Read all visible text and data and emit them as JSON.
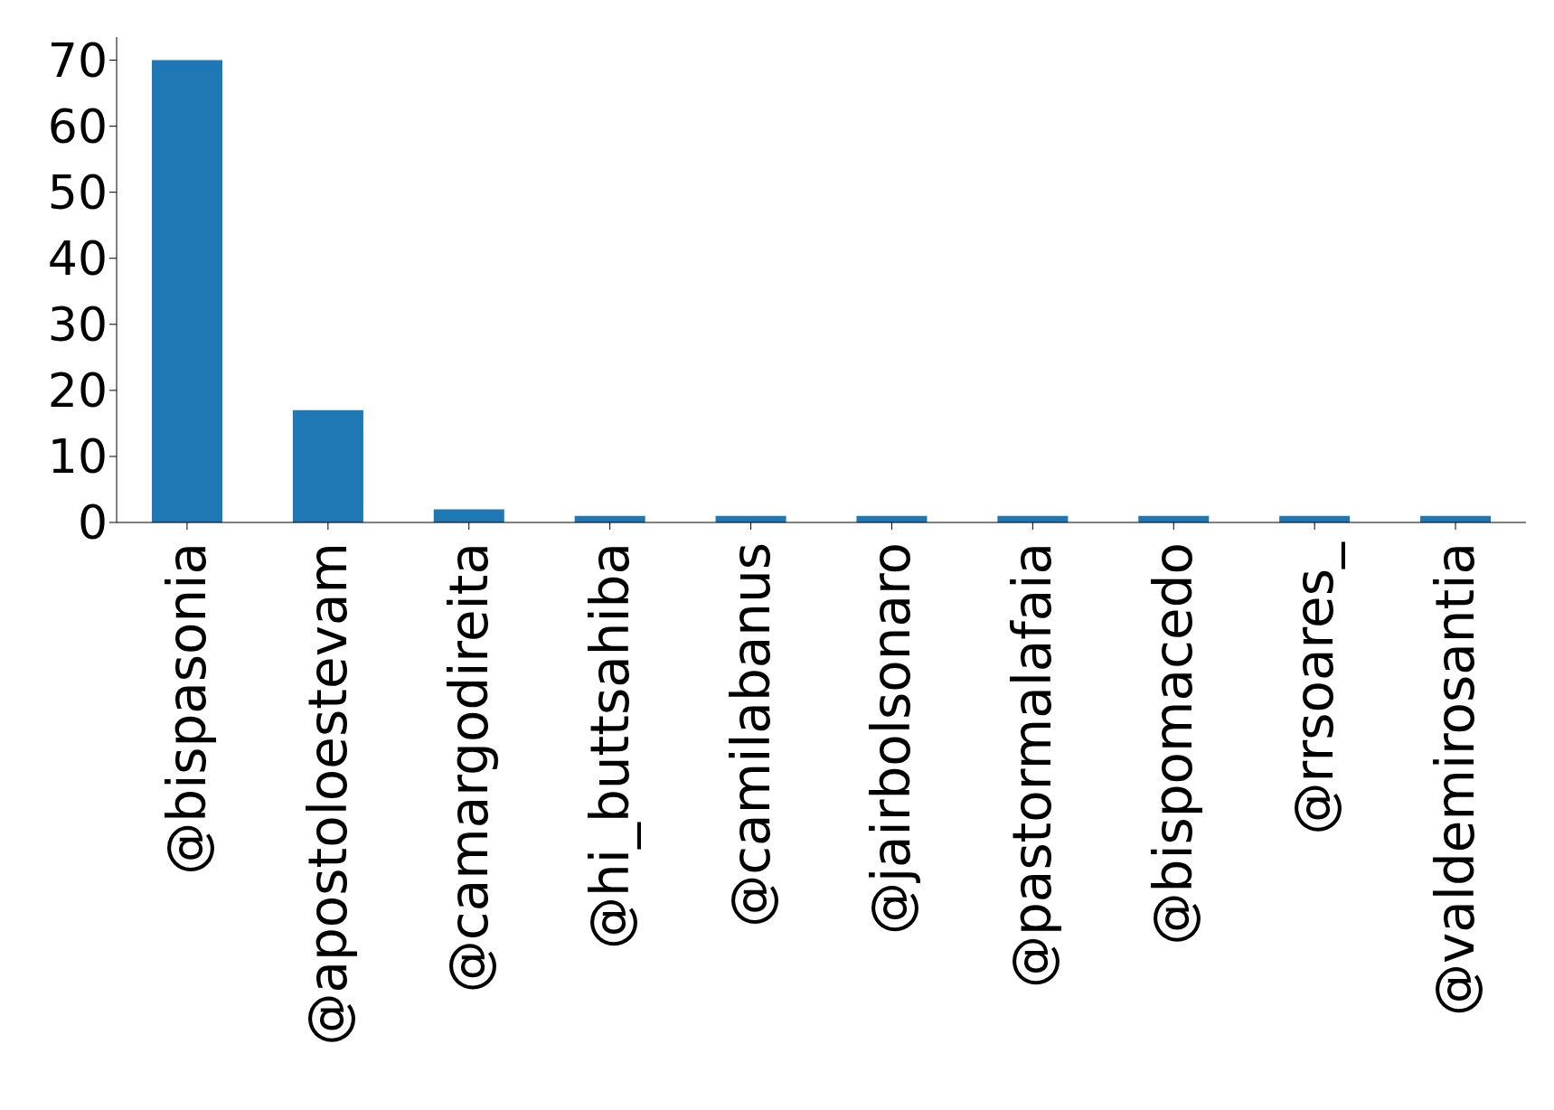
{
  "chart_data": {
    "type": "bar",
    "categories": [
      "@bispasonia",
      "@apostoloestevam",
      "@camargodireita",
      "@hi_buttsahiba",
      "@camilabanus",
      "@jairbolsonaro",
      "@pastormalafaia",
      "@bispomacedo",
      "@rrsoares_",
      "@valdemirosantia"
    ],
    "values": [
      70,
      17,
      2,
      1,
      1,
      1,
      1,
      1,
      1,
      1
    ],
    "color": "#1f77b4",
    "ylim": [
      0,
      73.5
    ],
    "yticks": [
      0,
      10,
      20,
      30,
      40,
      50,
      60,
      70
    ],
    "grid": false,
    "legend": false
  }
}
